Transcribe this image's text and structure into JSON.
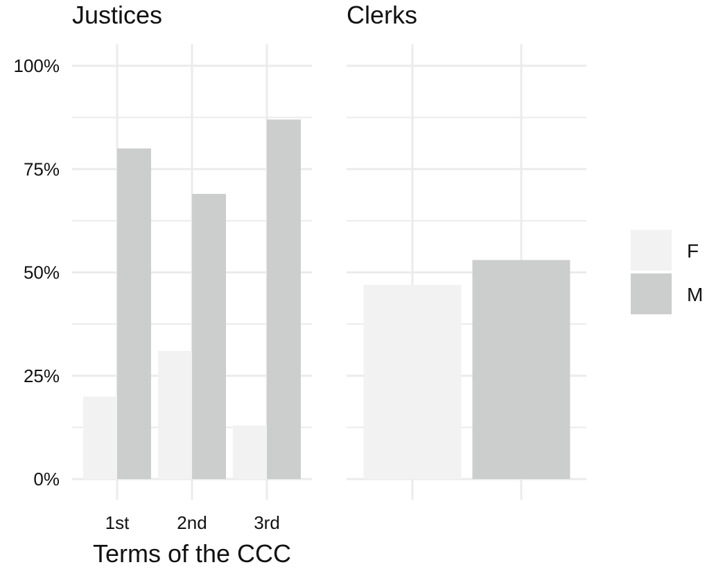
{
  "chart_data": [
    {
      "type": "bar",
      "title": "Justices",
      "categories": [
        "1st",
        "2nd",
        "3rd"
      ],
      "series": [
        {
          "name": "F",
          "values": [
            20,
            31,
            13
          ]
        },
        {
          "name": "M",
          "values": [
            80,
            69,
            87
          ]
        }
      ],
      "xlabel": "Terms of the CCC",
      "ylabel": "",
      "ylim": [
        0,
        100
      ],
      "y_ticks": [
        "0%",
        "25%",
        "50%",
        "75%",
        "100%"
      ],
      "grid": true
    },
    {
      "type": "bar",
      "title": "Clerks",
      "categories": [
        "F",
        "M"
      ],
      "values": [
        47,
        53
      ],
      "ylim": [
        0,
        100
      ],
      "grid": true
    }
  ],
  "legend": {
    "position": "right",
    "entries": [
      {
        "label": "F",
        "color": "#f2f2f2"
      },
      {
        "label": "M",
        "color": "#cccdcd"
      }
    ]
  },
  "colors": {
    "F": "#f2f2f2",
    "M": "#cccdcd",
    "grid": "#ebebeb"
  }
}
